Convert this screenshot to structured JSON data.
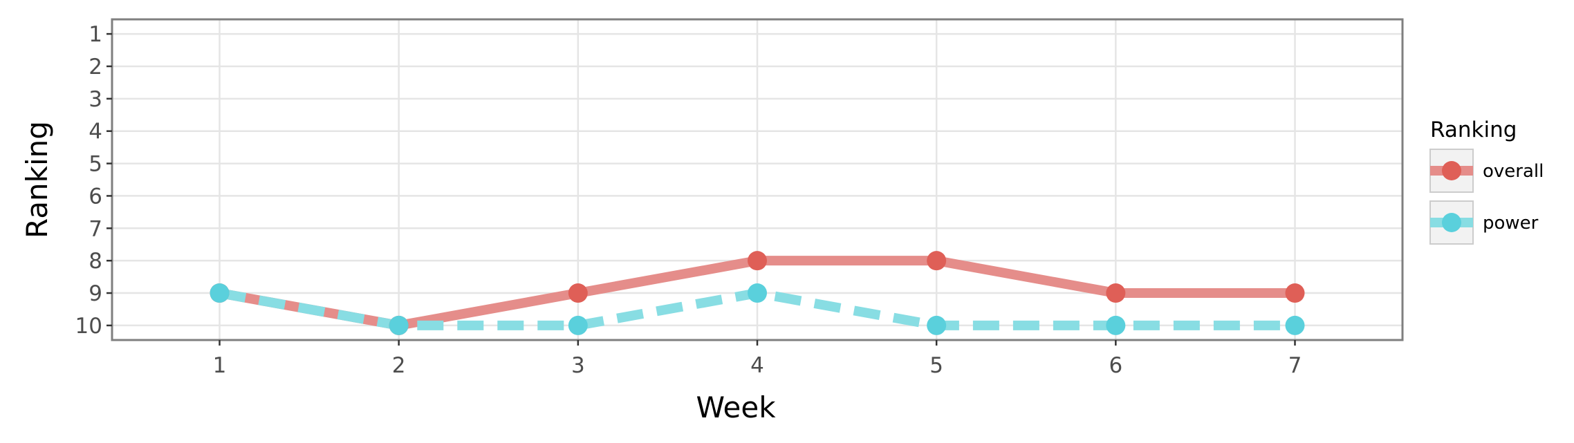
{
  "chart_data": {
    "type": "line",
    "xlabel": "Week",
    "ylabel": "Ranking",
    "x": [
      1,
      2,
      3,
      4,
      5,
      6,
      7
    ],
    "xlim": [
      0.4,
      7.6
    ],
    "ylim": [
      10.45,
      0.55
    ],
    "y_reversed": true,
    "x_ticks": [
      "1",
      "2",
      "3",
      "4",
      "5",
      "6",
      "7"
    ],
    "y_ticks": [
      "1",
      "2",
      "3",
      "4",
      "5",
      "6",
      "7",
      "8",
      "9",
      "10"
    ],
    "grid": true,
    "legend": {
      "title": "Ranking",
      "placement": "right"
    },
    "series": [
      {
        "name": "overall",
        "values": [
          9,
          10,
          9,
          8,
          8,
          9,
          9
        ],
        "line_color": "#e58d8a",
        "point_color": "#df5f57",
        "line_style": "solid"
      },
      {
        "name": "power",
        "values": [
          9,
          10,
          10,
          9,
          10,
          10,
          10
        ],
        "line_color": "#88dde3",
        "point_color": "#5ad0dc",
        "line_style": "dashed"
      }
    ]
  }
}
